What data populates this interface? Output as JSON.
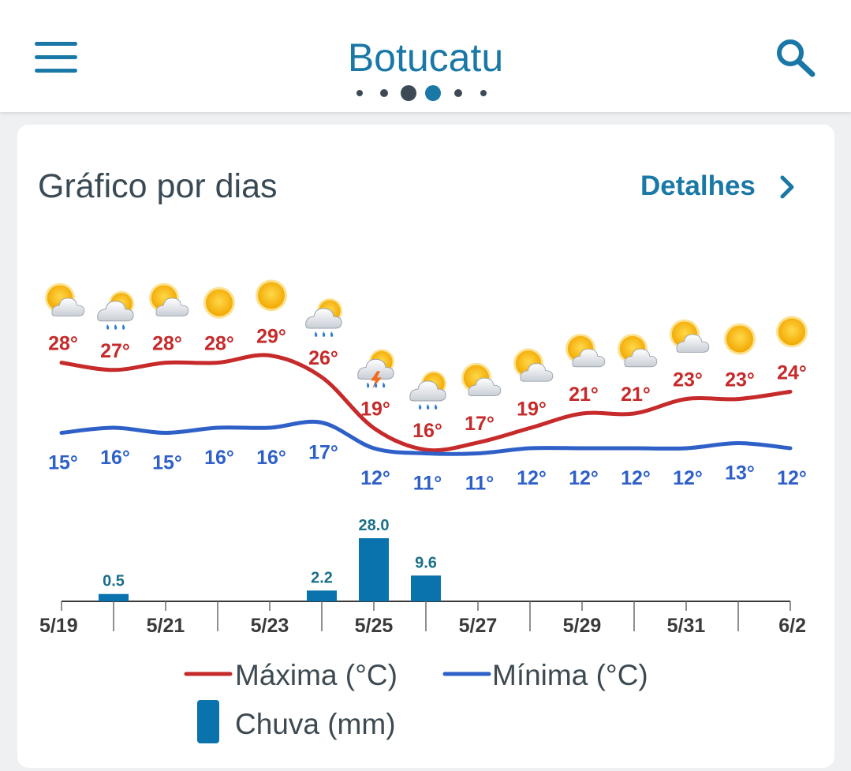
{
  "header": {
    "city": "Botucatu",
    "page_dots": [
      {
        "size": "small"
      },
      {
        "size": "small"
      },
      {
        "size": "large",
        "color": "#3d4a55"
      },
      {
        "size": "large",
        "color": "#1a78a6"
      },
      {
        "size": "small"
      },
      {
        "size": "small"
      }
    ],
    "menu_icon": "hamburger-menu-icon",
    "search_icon": "search-icon"
  },
  "card": {
    "title": "Gráfico por dias",
    "details_label": "Detalhes",
    "details_icon": "chevron-right-icon"
  },
  "colors": {
    "accent": "#1a78a6",
    "max_line": "#c62a2a",
    "min_line": "#2f60c8",
    "rain_bar": "#0a72ad"
  },
  "chart_data": {
    "type": "line",
    "title": "Gráfico por dias",
    "days": [
      "5/19",
      "5/20",
      "5/21",
      "5/22",
      "5/23",
      "5/24",
      "5/25",
      "5/26",
      "5/27",
      "5/28",
      "5/29",
      "5/30",
      "5/31",
      "6/1",
      "6/2"
    ],
    "x_tick_labels": [
      "5/19",
      "5/21",
      "5/23",
      "5/25",
      "5/27",
      "5/29",
      "5/31",
      "6/2"
    ],
    "weather_icons": [
      "partly-cloudy-icon",
      "rain-cloud-icon",
      "partly-cloudy-icon",
      "sun-icon",
      "sun-icon",
      "rain-cloud-icon",
      "thunderstorm-icon",
      "rain-cloud-icon",
      "partly-cloudy-icon",
      "partly-cloudy-icon",
      "partly-cloudy-icon",
      "partly-cloudy-icon",
      "partly-cloudy-icon",
      "sun-icon",
      "sun-icon"
    ],
    "series": [
      {
        "name": "Máxima (°C)",
        "values": [
          28,
          27,
          28,
          28,
          29,
          26,
          19,
          16,
          17,
          19,
          21,
          21,
          23,
          23,
          24
        ],
        "labels": [
          "28°",
          "27°",
          "28°",
          "28°",
          "29°",
          "26°",
          "19°",
          "16°",
          "17°",
          "19°",
          "21°",
          "21°",
          "23°",
          "23°",
          "24°"
        ]
      },
      {
        "name": "Mínima (°C)",
        "values": [
          15,
          16,
          15,
          16,
          16,
          17,
          12,
          11,
          11,
          12,
          12,
          12,
          12,
          13,
          12
        ],
        "labels": [
          "15°",
          "16°",
          "15°",
          "16°",
          "16°",
          "17°",
          "12°",
          "11°",
          "11°",
          "12°",
          "12°",
          "12°",
          "12°",
          "13°",
          "12°"
        ]
      }
    ],
    "rain": {
      "name": "Chuva (mm)",
      "values": [
        0,
        0.5,
        0,
        0,
        0,
        2.2,
        28.0,
        9.6,
        0,
        0,
        0,
        0,
        0,
        0,
        0
      ],
      "labels": [
        "",
        "0.5",
        "",
        "",
        "",
        "2.2",
        "28.0",
        "9.6",
        "",
        "",
        "",
        "",
        "",
        "",
        ""
      ]
    },
    "legend": [
      "Máxima (°C)",
      "Mínima (°C)",
      "Chuva (mm)"
    ],
    "legend_position": "bottom"
  }
}
